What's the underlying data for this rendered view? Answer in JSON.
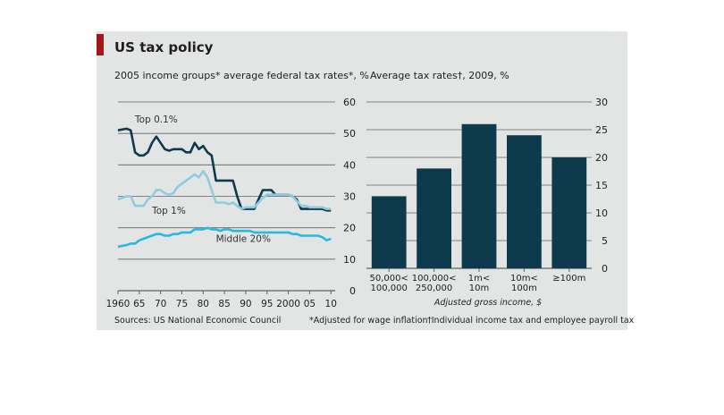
{
  "figure": {
    "title": "US tax policy",
    "source": "Sources: US National Economic Council",
    "footnote_1": "*Adjusted for wage inflation",
    "footnote_2": "†Individual income tax and employee payroll tax",
    "colors": {
      "panel_bg": "#e3e5e5",
      "accent_red": "#a4161a",
      "top01": "#0e3a4d",
      "top1": "#8fcbe0",
      "middle20": "#27b9e0",
      "bar": "#0e3a4d",
      "grid": "#5f6163",
      "text": "#1e1e1e"
    }
  },
  "chart_data": [
    {
      "type": "line",
      "title": "2005 income groups* average federal tax rates*, %",
      "xlabel": "",
      "ylabel": "",
      "xlim": [
        1960,
        2011
      ],
      "ylim": [
        0,
        60
      ],
      "x_ticks": [
        1960,
        1965,
        1970,
        1975,
        1980,
        1985,
        1990,
        1995,
        2000,
        2005,
        2010
      ],
      "x_tick_labels": [
        "1960",
        "65",
        "70",
        "75",
        "80",
        "85",
        "90",
        "95",
        "2000",
        "05",
        "10"
      ],
      "y_ticks": [
        0,
        10,
        20,
        30,
        40,
        50,
        60
      ],
      "y_tick_labels": [
        "0",
        "10",
        "20",
        "30",
        "40",
        "50",
        "60"
      ],
      "grid": true,
      "series": [
        {
          "name": "Top 0.1%",
          "color": "#0e3a4d",
          "x": [
            1960,
            1962,
            1963,
            1964,
            1965,
            1966,
            1967,
            1968,
            1969,
            1970,
            1971,
            1972,
            1973,
            1974,
            1975,
            1976,
            1977,
            1978,
            1979,
            1980,
            1981,
            1982,
            1983,
            1984,
            1985,
            1986,
            1987,
            1988,
            1989,
            1990,
            1991,
            1992,
            1993,
            1994,
            1995,
            1996,
            1997,
            1998,
            1999,
            2000,
            2001,
            2002,
            2003,
            2004,
            2005,
            2006,
            2007,
            2008,
            2009,
            2010
          ],
          "y": [
            51,
            51.5,
            51,
            44,
            43,
            43,
            44,
            47,
            49,
            47,
            45,
            44.5,
            45,
            45,
            45,
            44,
            44,
            47,
            45,
            46,
            44,
            43,
            35,
            35,
            35,
            35,
            35,
            30,
            26,
            26,
            26,
            26,
            29,
            32,
            32,
            32,
            30.5,
            30.5,
            30.5,
            30.5,
            30,
            29,
            26,
            26,
            26,
            26,
            26,
            26,
            25.5,
            25.5
          ]
        },
        {
          "name": "Top 1%",
          "color": "#8fcbe0",
          "x": [
            1960,
            1962,
            1963,
            1964,
            1965,
            1966,
            1967,
            1968,
            1969,
            1970,
            1971,
            1972,
            1973,
            1974,
            1975,
            1976,
            1977,
            1978,
            1979,
            1980,
            1981,
            1982,
            1983,
            1984,
            1985,
            1986,
            1987,
            1988,
            1989,
            1990,
            1991,
            1992,
            1993,
            1994,
            1995,
            1996,
            1997,
            1998,
            1999,
            2000,
            2001,
            2002,
            2003,
            2004,
            2005,
            2006,
            2007,
            2008,
            2009,
            2010
          ],
          "y": [
            29,
            30,
            30,
            27,
            27,
            27,
            29,
            30,
            32,
            32,
            31,
            30.5,
            31,
            33,
            34,
            35,
            36,
            37,
            36,
            38,
            36,
            32,
            28,
            28,
            28,
            27.5,
            28,
            27,
            26,
            26.5,
            26.5,
            26.5,
            28,
            29.5,
            30.5,
            30.5,
            30.5,
            30.5,
            30.5,
            30.5,
            30,
            28.5,
            27,
            27,
            26.5,
            26.5,
            26.5,
            26.5,
            26,
            26
          ]
        },
        {
          "name": "Middle 20%",
          "color": "#27b9e0",
          "x": [
            1960,
            1962,
            1963,
            1964,
            1965,
            1966,
            1967,
            1968,
            1969,
            1970,
            1971,
            1972,
            1973,
            1974,
            1975,
            1976,
            1977,
            1978,
            1979,
            1980,
            1981,
            1982,
            1983,
            1984,
            1985,
            1986,
            1987,
            1988,
            1989,
            1990,
            1991,
            1992,
            1993,
            1994,
            1995,
            1996,
            1997,
            1998,
            1999,
            2000,
            2001,
            2002,
            2003,
            2004,
            2005,
            2006,
            2007,
            2008,
            2009,
            2010
          ],
          "y": [
            14,
            14.5,
            15,
            15,
            16,
            16.5,
            17,
            17.5,
            18,
            18,
            17.5,
            17.5,
            18,
            18,
            18.5,
            18.5,
            18.5,
            19.5,
            19.5,
            19.5,
            20,
            19.5,
            19.5,
            19,
            19.5,
            19.5,
            19,
            19,
            19,
            19,
            19,
            18.5,
            18.5,
            18.5,
            18.5,
            18.5,
            18.5,
            18.5,
            18.5,
            18.5,
            18,
            18,
            17.5,
            17.5,
            17.5,
            17.5,
            17.5,
            17,
            16,
            16.5
          ]
        }
      ]
    },
    {
      "type": "bar",
      "title": "Average tax rates†, 2009, %",
      "xlabel": "Adjusted gross income, $",
      "ylabel": "",
      "categories": [
        [
          "50,000<",
          "100,000"
        ],
        [
          "100,000<",
          "250,000"
        ],
        [
          "1m<",
          "10m"
        ],
        [
          "10m<",
          "100m"
        ],
        [
          "≥100m"
        ]
      ],
      "values": [
        13,
        18,
        26,
        24,
        20
      ],
      "ylim": [
        0,
        30
      ],
      "y_ticks": [
        0,
        5,
        10,
        15,
        20,
        25,
        30
      ],
      "y_tick_labels": [
        "0",
        "5",
        "10",
        "15",
        "20",
        "25",
        "30"
      ],
      "grid": true
    }
  ]
}
